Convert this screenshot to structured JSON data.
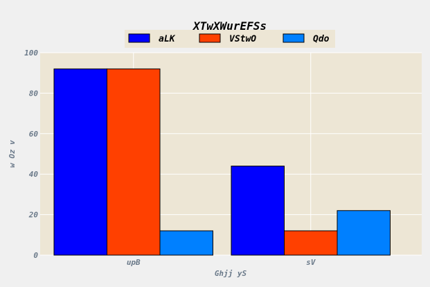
{
  "chart_data": {
    "type": "bar",
    "title": "XTwXWurEFSs",
    "xlabel": "Ghjj yS",
    "ylabel": "w Oz  v",
    "categories": [
      "upB",
      "sV"
    ],
    "series": [
      {
        "name": "aLK",
        "values": [
          92,
          44
        ],
        "color": "#0000ff"
      },
      {
        "name": "VStwO",
        "values": [
          92,
          12
        ],
        "color": "#ff4000"
      },
      {
        "name": "Qdo",
        "values": [
          12,
          22
        ],
        "color": "#0080ff"
      }
    ],
    "ylim": [
      0,
      100
    ],
    "yticks": [
      0,
      20,
      40,
      60,
      80,
      100
    ],
    "grid": true,
    "legend_position": "top-center",
    "plot_background": "#ede6d5",
    "grid_color": "#ffffff"
  }
}
